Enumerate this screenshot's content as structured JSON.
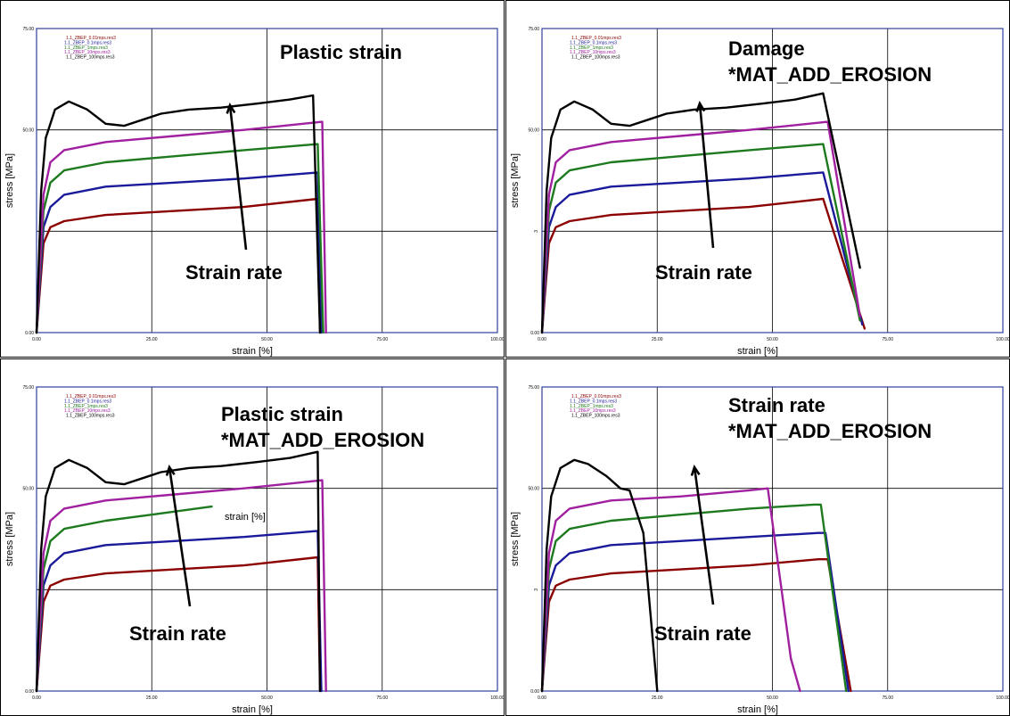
{
  "colors": {
    "series": [
      "#8b0000",
      "#1a1a9a",
      "#1e7a1e",
      "#a020a0",
      "#000000"
    ],
    "plot_frame": "#2e3fa0",
    "grid": "#000000"
  },
  "chart_data": [
    {
      "type": "line",
      "title": "Plastic strain",
      "xlabel": "strain [%]",
      "ylabel": "stress [MPa]",
      "xlim": [
        0,
        100
      ],
      "ylim": [
        0,
        75
      ],
      "x_ticks": [
        "0.00",
        "25.00",
        "50.00",
        "75.00",
        "100.00"
      ],
      "y_ticks": [
        "0.00",
        "",
        "50.00",
        "75.00"
      ],
      "grid": true,
      "legend_position": "top-left",
      "annotation": "Strain rate",
      "series": [
        {
          "name": "1.1_ZBEP_0.01mps.res3",
          "x": [
            0,
            1.5,
            3,
            6,
            15,
            30,
            45,
            61,
            61.5
          ],
          "y": [
            0,
            22,
            26,
            27.5,
            29,
            30,
            31,
            33,
            0
          ]
        },
        {
          "name": "1.1_ZBEP_0.1mps.res3",
          "x": [
            0,
            1.5,
            3,
            6,
            15,
            30,
            45,
            61,
            61.8
          ],
          "y": [
            0,
            26,
            31,
            34,
            36,
            37,
            38,
            39.5,
            0
          ]
        },
        {
          "name": "1.1_ZBEP_1mps.res3",
          "x": [
            0,
            1.5,
            3,
            6,
            15,
            30,
            45,
            61,
            62.2
          ],
          "y": [
            0,
            30,
            37,
            40,
            42,
            43.5,
            45,
            46.5,
            0
          ]
        },
        {
          "name": "1.1_ZBEP_10mps.res3",
          "x": [
            0,
            1.5,
            3,
            6,
            15,
            30,
            45,
            62,
            62.8
          ],
          "y": [
            0,
            34,
            42,
            45,
            47,
            48.5,
            50,
            52,
            0
          ]
        },
        {
          "name": "1.1_ZBEP_100mps.res3",
          "x": [
            0,
            1,
            2,
            4,
            7,
            11,
            15,
            19,
            23,
            27,
            33,
            40,
            48,
            55,
            60,
            61.5
          ],
          "y": [
            0,
            35,
            48,
            55,
            57,
            55,
            51.5,
            51,
            52.5,
            54,
            55,
            55.5,
            56.5,
            57.5,
            58.5,
            0
          ]
        }
      ]
    },
    {
      "type": "line",
      "title": "Damage\n*MAT_ADD_EROSION",
      "xlabel": "strain [%]",
      "ylabel": "stress [MPa]",
      "xlim": [
        0,
        100
      ],
      "ylim": [
        0,
        75
      ],
      "x_ticks": [
        "0.00",
        "25.00",
        "50.00",
        "75.00",
        "100.00"
      ],
      "y_ticks": [
        "0.00",
        "3",
        "50.00",
        "75.00"
      ],
      "grid": true,
      "legend_position": "top-left",
      "annotation": "Strain rate",
      "series": [
        {
          "name": "1.1_ZBEP_0.01mps.res3",
          "x": [
            0,
            1.5,
            3,
            6,
            15,
            30,
            45,
            61,
            70
          ],
          "y": [
            0,
            22,
            26,
            27.5,
            29,
            30,
            31,
            33,
            1
          ]
        },
        {
          "name": "1.1_ZBEP_0.1mps.res3",
          "x": [
            0,
            1.5,
            3,
            6,
            15,
            30,
            45,
            61,
            69.5
          ],
          "y": [
            0,
            26,
            31,
            34,
            36,
            37,
            38,
            39.5,
            2
          ]
        },
        {
          "name": "1.1_ZBEP_1mps.res3",
          "x": [
            0,
            1.5,
            3,
            6,
            15,
            30,
            45,
            61,
            69
          ],
          "y": [
            0,
            30,
            37,
            40,
            42,
            43.5,
            45,
            46.5,
            3
          ]
        },
        {
          "name": "1.1_ZBEP_10mps.res3",
          "x": [
            0,
            1.5,
            3,
            6,
            15,
            30,
            45,
            62,
            69
          ],
          "y": [
            0,
            34,
            42,
            45,
            47,
            48.5,
            50,
            52,
            4
          ]
        },
        {
          "name": "1.1_ZBEP_100mps.res3",
          "x": [
            0,
            1,
            2,
            4,
            7,
            11,
            15,
            19,
            23,
            27,
            33,
            40,
            48,
            55,
            61,
            69
          ],
          "y": [
            0,
            35,
            48,
            55,
            57,
            55,
            51.5,
            51,
            52.5,
            54,
            55,
            55.5,
            56.5,
            57.5,
            59,
            16
          ]
        }
      ]
    },
    {
      "type": "line",
      "title": "Plastic strain\n*MAT_ADD_EROSION",
      "xlabel": "strain [%]",
      "ylabel": "stress [MPa]",
      "xlim": [
        0,
        100
      ],
      "ylim": [
        0,
        75
      ],
      "x_ticks": [
        "0.00",
        "25.00",
        "50.00",
        "75.00",
        "100.00"
      ],
      "y_ticks": [
        "0.00",
        "",
        "50.00",
        "75.00"
      ],
      "grid": true,
      "legend_position": "top-left",
      "annotation": "Strain rate",
      "inline_label": "strain [%]",
      "series": [
        {
          "name": "1.1_ZBEP_0.01mps.res3",
          "x": [
            0,
            1.5,
            3,
            6,
            15,
            30,
            45,
            61,
            61.5
          ],
          "y": [
            0,
            22,
            26,
            27.5,
            29,
            30,
            31,
            33,
            0
          ]
        },
        {
          "name": "1.1_ZBEP_0.1mps.res3",
          "x": [
            0,
            1.5,
            3,
            6,
            15,
            30,
            45,
            61,
            61.8
          ],
          "y": [
            0,
            26,
            31,
            34,
            36,
            37,
            38,
            39.5,
            0
          ]
        },
        {
          "name": "1.1_ZBEP_1mps.res3",
          "x": [
            0,
            1.5,
            3,
            6,
            15,
            25,
            38
          ],
          "y": [
            0,
            30,
            37,
            40,
            42,
            43.5,
            45.5
          ]
        },
        {
          "name": "1.1_ZBEP_10mps.res3",
          "x": [
            0,
            1.5,
            3,
            6,
            15,
            30,
            45,
            62,
            62.8
          ],
          "y": [
            0,
            34,
            42,
            45,
            47,
            48.5,
            50,
            52,
            0
          ]
        },
        {
          "name": "1.1_ZBEP_100mps.res3",
          "x": [
            0,
            1,
            2,
            4,
            7,
            11,
            15,
            19,
            23,
            27,
            33,
            40,
            48,
            55,
            61,
            61.5
          ],
          "y": [
            0,
            35,
            48,
            55,
            57,
            55,
            51.5,
            51,
            52.5,
            54,
            55,
            55.5,
            56.5,
            57.5,
            59,
            0
          ]
        }
      ]
    },
    {
      "type": "line",
      "title": "Strain rate\n*MAT_ADD_EROSION",
      "xlabel": "strain [%]",
      "ylabel": "stress [MPa]",
      "xlim": [
        0,
        100
      ],
      "ylim": [
        0,
        75
      ],
      "x_ticks": [
        "0.00",
        "25.00",
        "50.00",
        "75.00",
        "100.00"
      ],
      "y_ticks": [
        "0.00",
        "3",
        "50.00",
        "75.00"
      ],
      "grid": true,
      "legend_position": "top-left",
      "annotation": "Strain rate",
      "series": [
        {
          "name": "1.1_ZBEP_0.01mps.res3",
          "x": [
            0,
            1.5,
            3,
            6,
            15,
            30,
            45,
            60,
            62,
            67
          ],
          "y": [
            0,
            22,
            26,
            27.5,
            29,
            30,
            31,
            32.5,
            32.5,
            0
          ]
        },
        {
          "name": "1.1_ZBEP_0.1mps.res3",
          "x": [
            0,
            1.5,
            3,
            6,
            15,
            30,
            45,
            60,
            61.5,
            66.5
          ],
          "y": [
            0,
            26,
            31,
            34,
            36,
            37,
            38,
            39,
            39,
            0
          ]
        },
        {
          "name": "1.1_ZBEP_1mps.res3",
          "x": [
            0,
            1.5,
            3,
            6,
            15,
            30,
            45,
            59,
            60.5,
            66
          ],
          "y": [
            0,
            30,
            37,
            40,
            42,
            43.5,
            45,
            46,
            46,
            0
          ]
        },
        {
          "name": "1.1_ZBEP_10mps.res3",
          "x": [
            0,
            1.5,
            3,
            6,
            15,
            30,
            45,
            49,
            54,
            56
          ],
          "y": [
            0,
            34,
            42,
            45,
            47,
            48,
            49.5,
            50,
            8,
            0
          ]
        },
        {
          "name": "1.1_ZBEP_100mps.res3",
          "x": [
            0,
            1,
            2,
            4,
            7,
            10,
            14,
            17,
            19,
            22,
            25
          ],
          "y": [
            0,
            35,
            48,
            55,
            57,
            56,
            53,
            50,
            49.5,
            39,
            0
          ]
        }
      ]
    }
  ]
}
